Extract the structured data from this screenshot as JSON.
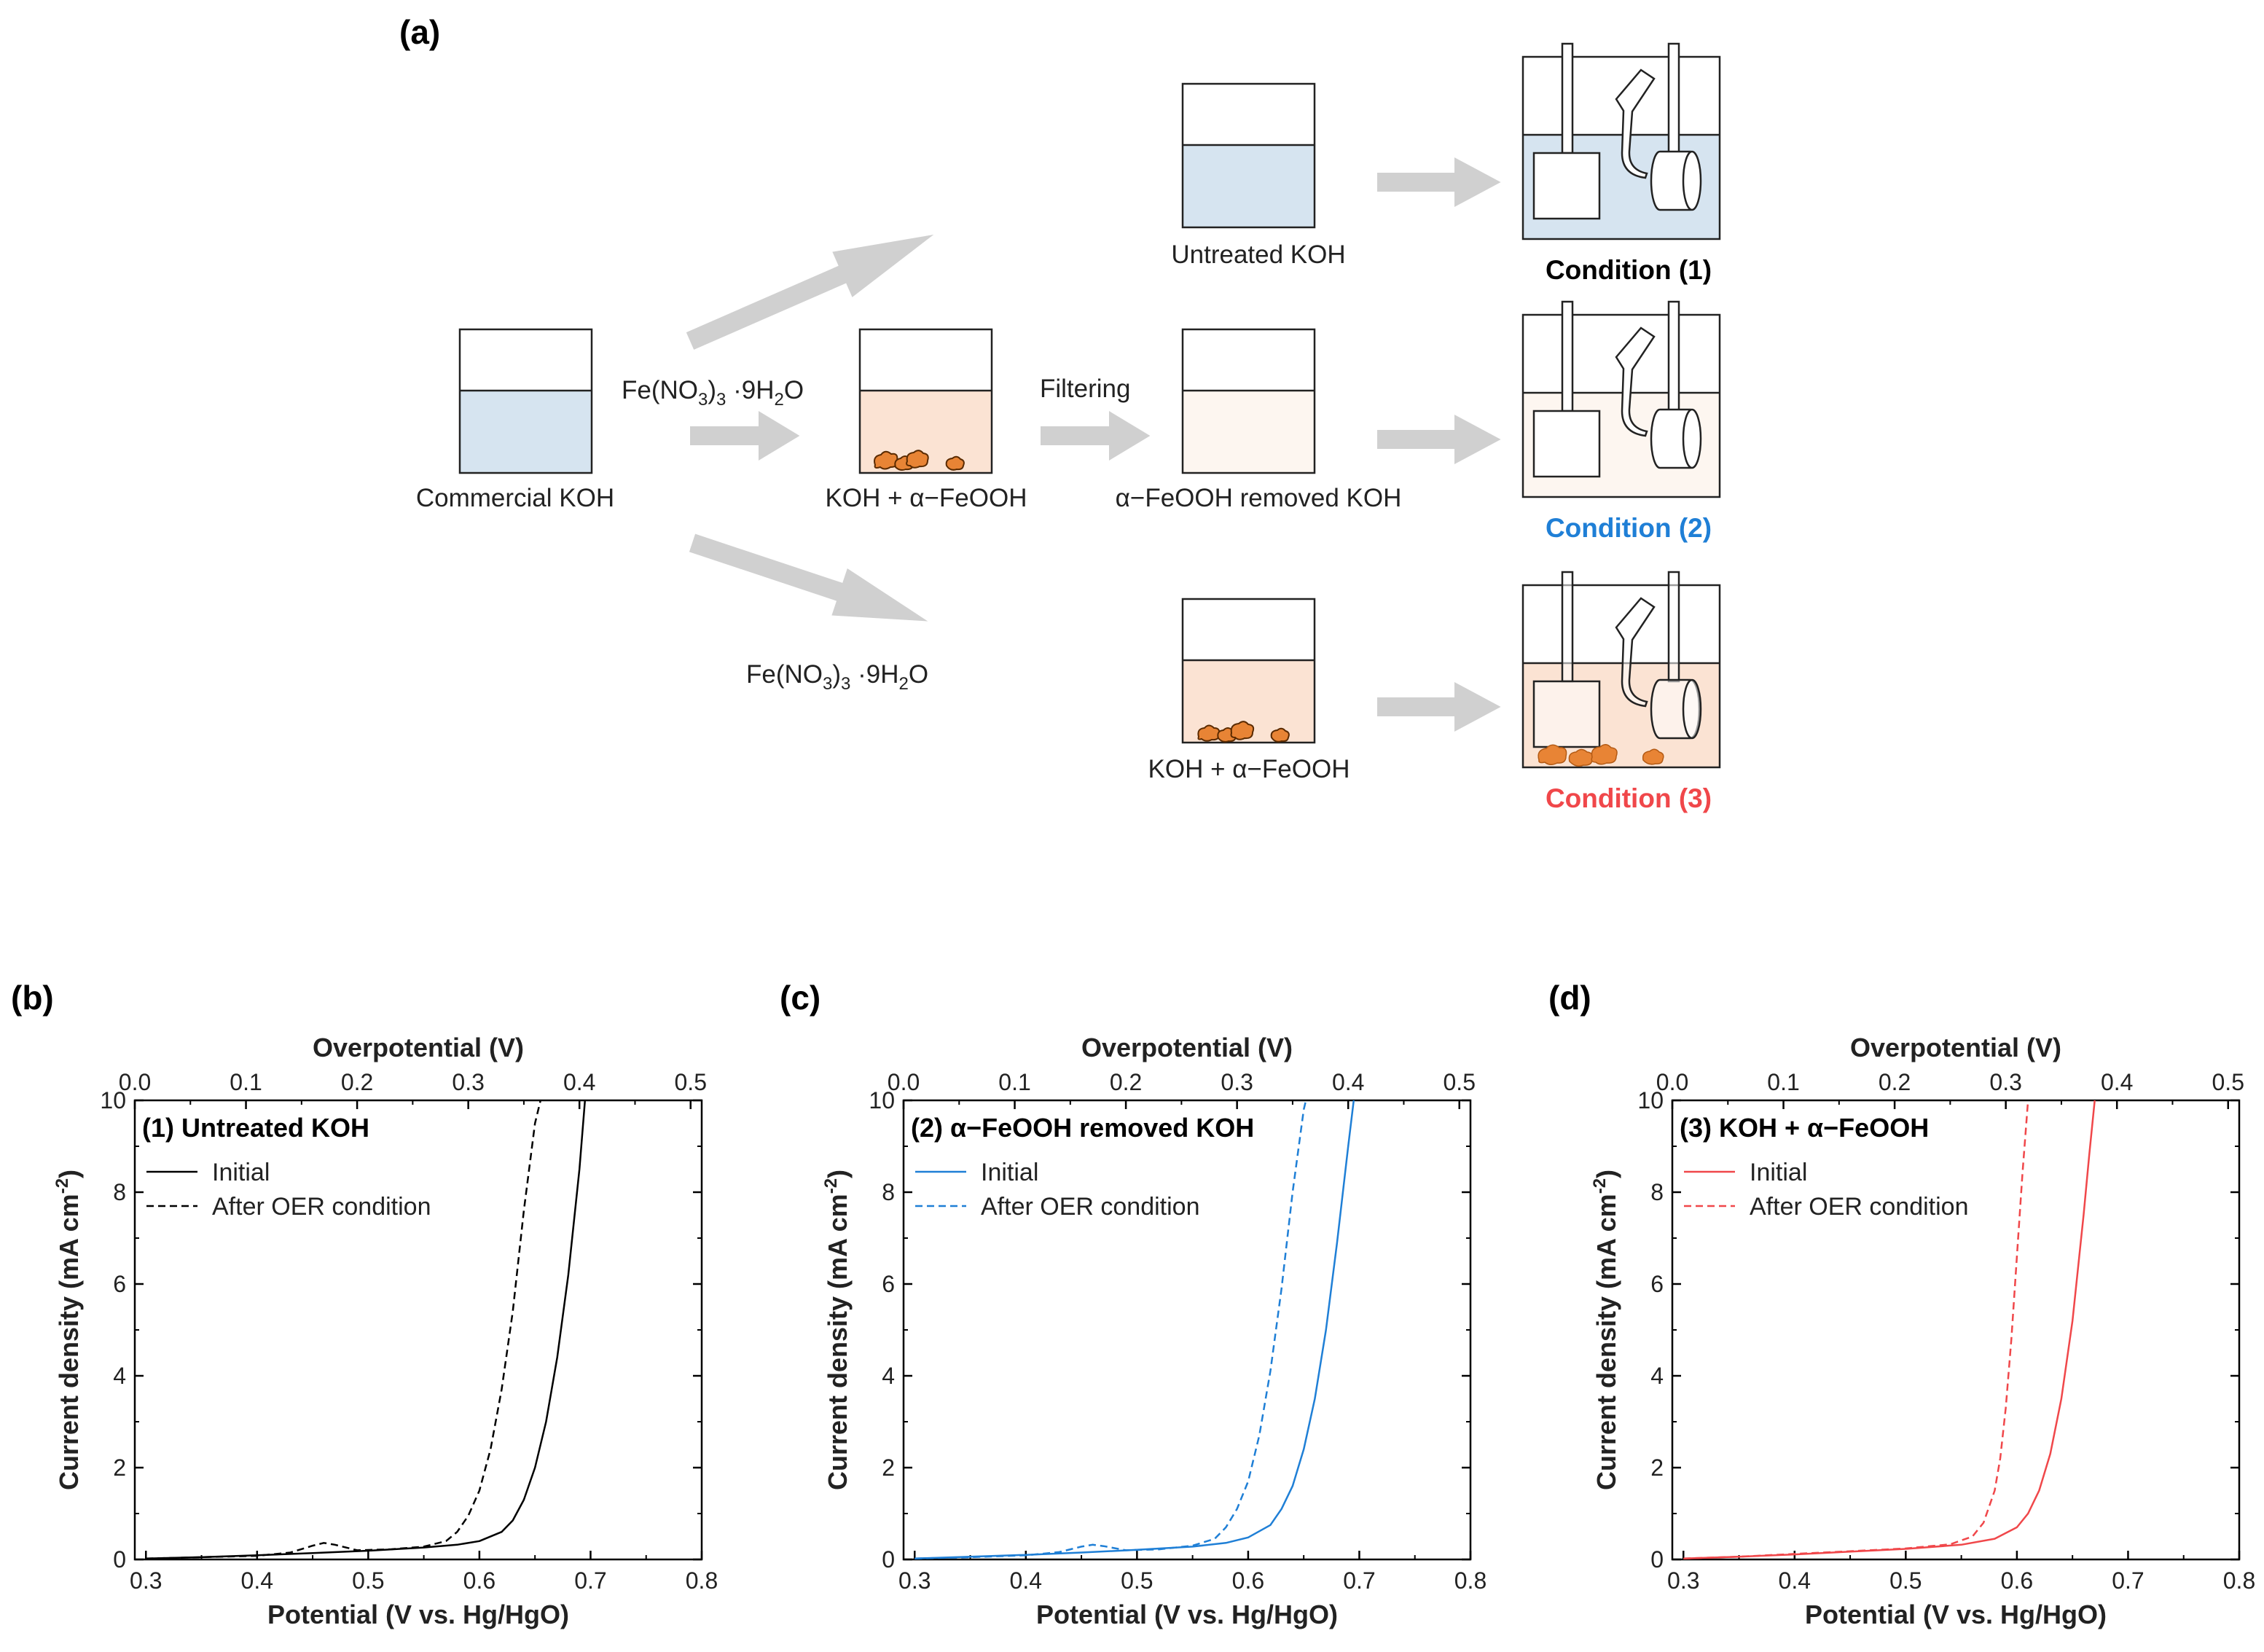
{
  "panel_a": {
    "label": "(a)",
    "commercial_koh": "Commercial KOH",
    "reagent_top": [
      "Fe(NO",
      "3",
      ")",
      "3",
      " ·9H",
      "2",
      "O"
    ],
    "reagent_bottom": [
      "Fe(NO",
      "3",
      ")",
      "3",
      " ·9H",
      "2",
      "O"
    ],
    "koh_feooh_mid": "KOH + α−FeOOH",
    "filtering": "Filtering",
    "feooh_removed": "α−FeOOH removed KOH",
    "untreated_koh": "Untreated KOH",
    "koh_feooh_bottom": "KOH + α−FeOOH",
    "condition_1": "Condition (1)",
    "condition_2": "Condition (2)",
    "condition_3": "Condition (3)",
    "colors": {
      "koh": "#d6e4f0",
      "feooh_solution": "#fbe3d3",
      "removed_solution": "#fdf6f0",
      "particle": "#e88435",
      "arrow": "#d0d0d0",
      "condition_1": "#000000",
      "condition_2": "#1f7fd6",
      "condition_3": "#f0474a"
    }
  },
  "chart_data": [
    {
      "type": "line",
      "panel_label": "(b)",
      "inset_title": "(1) Untreated KOH",
      "xlabel": "Potential (V vs. Hg/HgO)",
      "x2label": "Overpotential (V)",
      "ylabel": "Current density (mA cm",
      "ylabel_sup": "-2",
      "ylabel_end": ")",
      "xlim": [
        0.29,
        0.8
      ],
      "ylim": [
        0,
        10
      ],
      "x2lim": [
        0.0,
        0.51
      ],
      "xticks": [
        "0.3",
        "0.4",
        "0.5",
        "0.6",
        "0.7",
        "0.8"
      ],
      "x2ticks": [
        "0.0",
        "0.1",
        "0.2",
        "0.3",
        "0.4",
        "0.5"
      ],
      "yticks": [
        "0",
        "2",
        "4",
        "6",
        "8",
        "10"
      ],
      "color": "#000000",
      "series": [
        {
          "name": "Initial",
          "style": "solid",
          "x": [
            0.3,
            0.35,
            0.4,
            0.45,
            0.5,
            0.55,
            0.58,
            0.6,
            0.62,
            0.63,
            0.64,
            0.65,
            0.66,
            0.67,
            0.68,
            0.69,
            0.695
          ],
          "y": [
            0.02,
            0.05,
            0.09,
            0.14,
            0.19,
            0.26,
            0.32,
            0.4,
            0.6,
            0.85,
            1.3,
            2.0,
            3.0,
            4.4,
            6.2,
            8.5,
            10.0
          ]
        },
        {
          "name": "After OER condition",
          "style": "dashed",
          "x": [
            0.3,
            0.35,
            0.4,
            0.43,
            0.45,
            0.46,
            0.47,
            0.49,
            0.52,
            0.55,
            0.57,
            0.58,
            0.59,
            0.6,
            0.61,
            0.62,
            0.63,
            0.64,
            0.65,
            0.655
          ],
          "y": [
            0.02,
            0.05,
            0.08,
            0.15,
            0.3,
            0.36,
            0.32,
            0.2,
            0.22,
            0.28,
            0.4,
            0.6,
            0.95,
            1.5,
            2.4,
            3.7,
            5.4,
            7.6,
            9.5,
            10.0
          ]
        }
      ]
    },
    {
      "type": "line",
      "panel_label": "(c)",
      "inset_title": "(2) α−FeOOH removed KOH",
      "xlabel": "Potential (V vs. Hg/HgO)",
      "x2label": "Overpotential (V)",
      "ylabel": "Current density (mA cm",
      "ylabel_sup": "-2",
      "ylabel_end": ")",
      "xlim": [
        0.29,
        0.8
      ],
      "ylim": [
        0,
        10
      ],
      "x2lim": [
        0.0,
        0.51
      ],
      "xticks": [
        "0.3",
        "0.4",
        "0.5",
        "0.6",
        "0.7",
        "0.8"
      ],
      "x2ticks": [
        "0.0",
        "0.1",
        "0.2",
        "0.3",
        "0.4",
        "0.5"
      ],
      "yticks": [
        "0",
        "2",
        "4",
        "6",
        "8",
        "10"
      ],
      "color": "#1f7fd6",
      "series": [
        {
          "name": "Initial",
          "style": "solid",
          "x": [
            0.3,
            0.35,
            0.4,
            0.45,
            0.5,
            0.55,
            0.58,
            0.6,
            0.62,
            0.63,
            0.64,
            0.65,
            0.66,
            0.67,
            0.68,
            0.69,
            0.695
          ],
          "y": [
            0.02,
            0.06,
            0.1,
            0.15,
            0.21,
            0.28,
            0.36,
            0.48,
            0.75,
            1.1,
            1.6,
            2.4,
            3.5,
            5.0,
            6.9,
            9.0,
            10.0
          ]
        },
        {
          "name": "After OER condition",
          "style": "dashed",
          "x": [
            0.3,
            0.35,
            0.4,
            0.43,
            0.45,
            0.46,
            0.47,
            0.49,
            0.52,
            0.55,
            0.57,
            0.58,
            0.59,
            0.6,
            0.61,
            0.62,
            0.63,
            0.64,
            0.65,
            0.652
          ],
          "y": [
            0.02,
            0.05,
            0.09,
            0.16,
            0.28,
            0.32,
            0.29,
            0.2,
            0.22,
            0.3,
            0.45,
            0.7,
            1.1,
            1.7,
            2.7,
            4.1,
            5.9,
            8.0,
            9.8,
            10.0
          ]
        }
      ]
    },
    {
      "type": "line",
      "panel_label": "(d)",
      "inset_title": "(3) KOH + α−FeOOH",
      "xlabel": "Potential (V vs. Hg/HgO)",
      "x2label": "Overpotential (V)",
      "ylabel": "Current density (mA cm",
      "ylabel_sup": "-2",
      "ylabel_end": ")",
      "xlim": [
        0.29,
        0.8
      ],
      "ylim": [
        0,
        10
      ],
      "x2lim": [
        0.0,
        0.51
      ],
      "xticks": [
        "0.3",
        "0.4",
        "0.5",
        "0.6",
        "0.7",
        "0.8"
      ],
      "x2ticks": [
        "0.0",
        "0.1",
        "0.2",
        "0.3",
        "0.4",
        "0.5"
      ],
      "yticks": [
        "0",
        "2",
        "4",
        "6",
        "8",
        "10"
      ],
      "color": "#f0474a",
      "series": [
        {
          "name": "Initial",
          "style": "solid",
          "x": [
            0.3,
            0.35,
            0.4,
            0.45,
            0.5,
            0.55,
            0.58,
            0.6,
            0.61,
            0.62,
            0.63,
            0.64,
            0.65,
            0.66,
            0.665,
            0.67
          ],
          "y": [
            0.02,
            0.06,
            0.11,
            0.17,
            0.23,
            0.32,
            0.45,
            0.7,
            1.0,
            1.5,
            2.3,
            3.5,
            5.2,
            7.5,
            8.8,
            10.0
          ]
        },
        {
          "name": "After OER condition",
          "style": "dashed",
          "x": [
            0.3,
            0.35,
            0.4,
            0.45,
            0.5,
            0.54,
            0.56,
            0.57,
            0.58,
            0.585,
            0.59,
            0.595,
            0.6,
            0.605,
            0.61
          ],
          "y": [
            0.02,
            0.06,
            0.12,
            0.18,
            0.24,
            0.33,
            0.5,
            0.8,
            1.5,
            2.2,
            3.3,
            4.8,
            6.6,
            8.4,
            10.0
          ]
        }
      ]
    }
  ]
}
